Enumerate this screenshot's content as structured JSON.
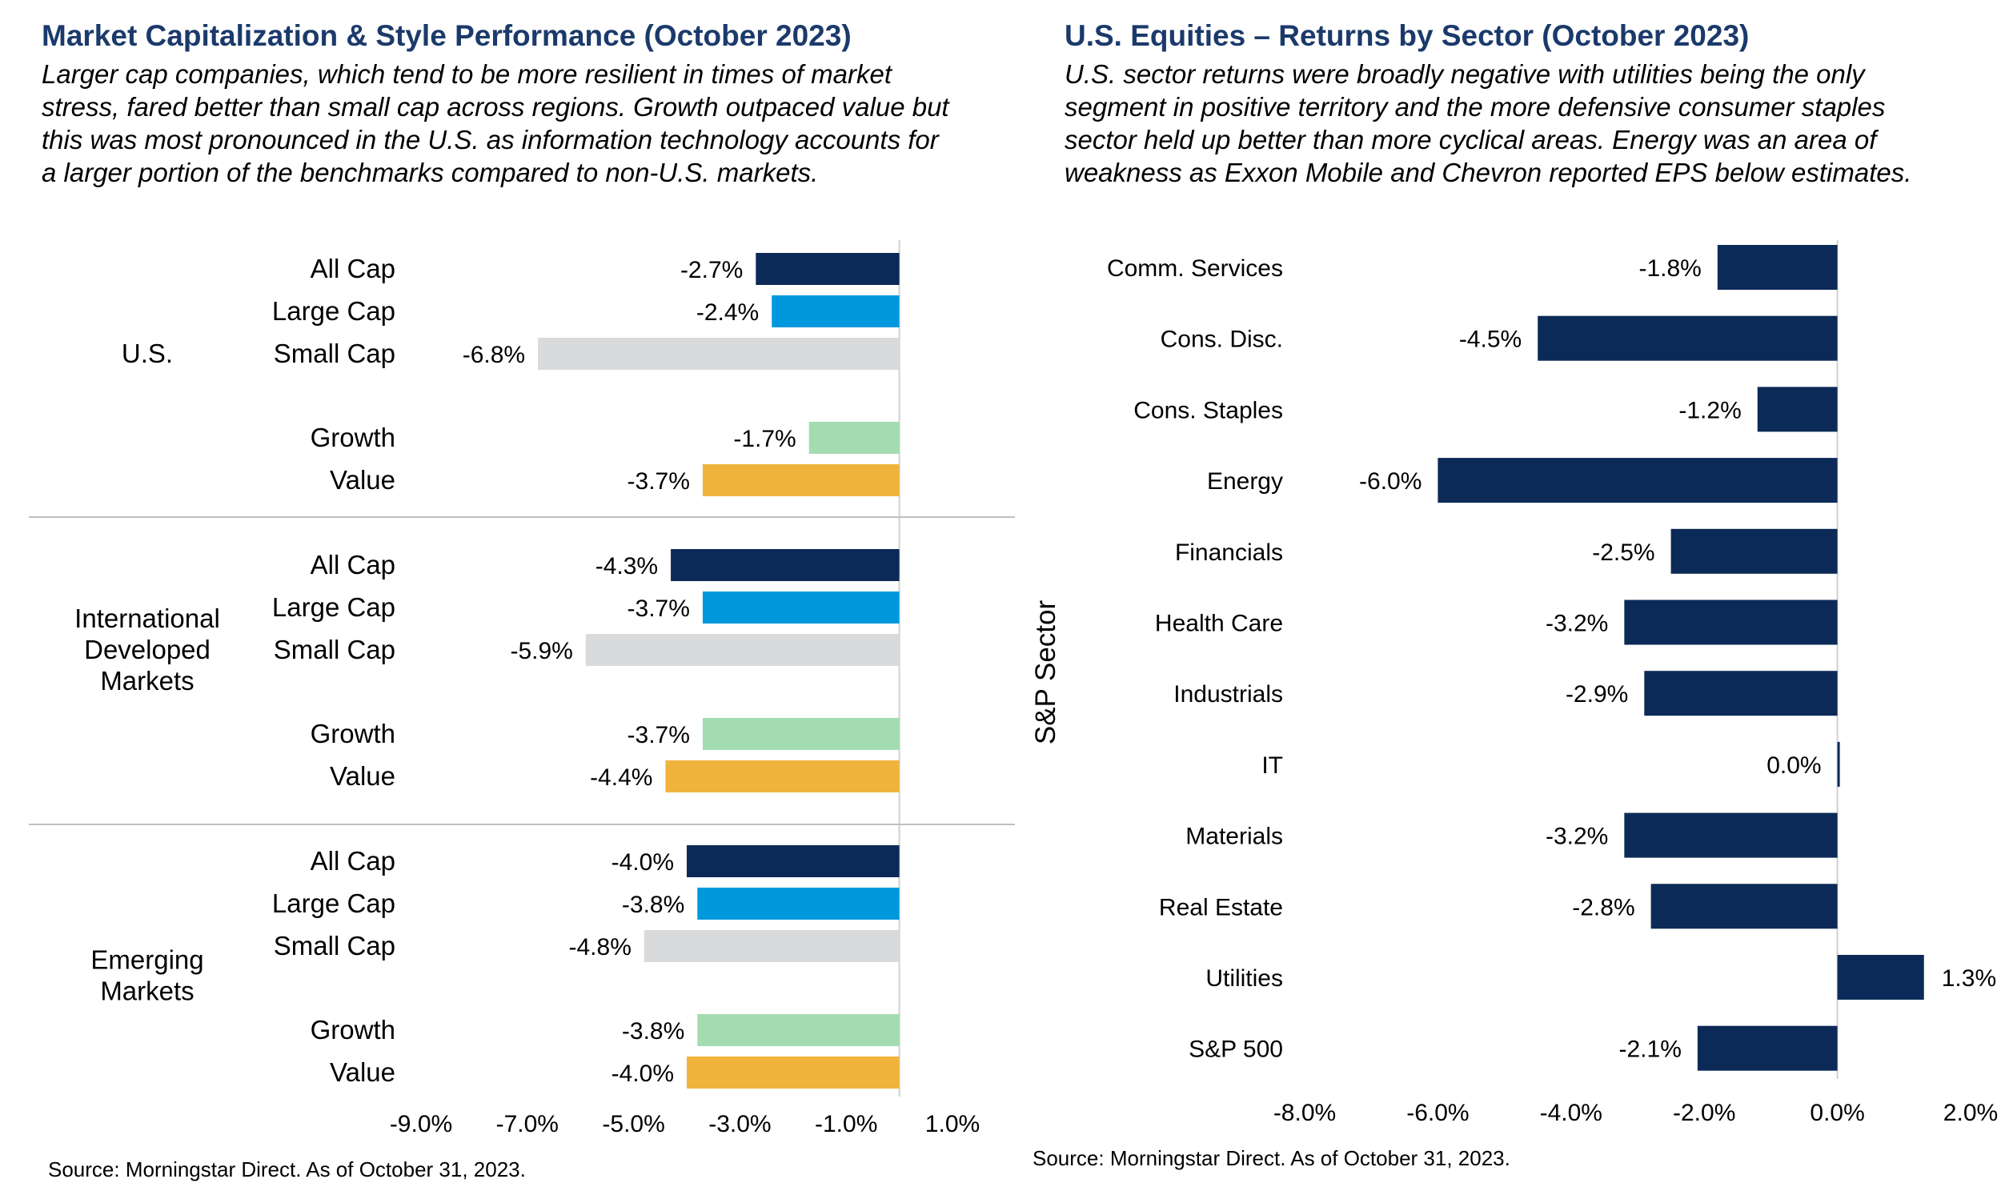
{
  "left": {
    "title": "Market Capitalization & Style Performance (October 2023)",
    "subtitle_lines": [
      "Larger cap companies, which tend to be more resilient in times of market",
      "stress, fared better than small cap across regions. Growth outpaced value but",
      "this was most pronounced in the U.S. as information technology accounts for",
      "a larger portion of the benchmarks compared to non-U.S. markets."
    ],
    "source": "Source: Morningstar Direct. As of October 31, 2023."
  },
  "right": {
    "title": "U.S. Equities – Returns by Sector (October 2023)",
    "subtitle_lines": [
      "U.S. sector returns were broadly negative with utilities being the only",
      "segment in positive territory and the more defensive consumer staples",
      "sector held up better than more cyclical areas. Energy was an area of",
      "weakness as Exxon Mobile and Chevron reported EPS below estimates."
    ],
    "source": "Source: Morningstar Direct. As of October 31, 2023."
  },
  "colors": {
    "All Cap": "#0b2a57",
    "Large Cap": "#0098dd",
    "Small Cap": "#d9dadb",
    "Growth": "#a3dcb0",
    "Value": "#f0b43c",
    "sector_bar": "#0b2a57",
    "title": "#1b3a6b",
    "divider": "#bfbfbf",
    "axis": "#d0d0d0"
  },
  "chart_data": [
    {
      "type": "bar",
      "orientation": "horizontal",
      "title": "Market Capitalization & Style Performance (October 2023)",
      "xlim": [
        -9.0,
        1.0
      ],
      "xticks": [
        "-9.0%",
        "-7.0%",
        "-5.0%",
        "-3.0%",
        "-1.0%",
        "1.0%"
      ],
      "tick_values": [
        -9,
        -7,
        -5,
        -3,
        -1,
        1
      ],
      "groups": [
        {
          "name": "U.S.",
          "bars": [
            {
              "category": "All Cap",
              "value": -2.7,
              "label": "-2.7%"
            },
            {
              "category": "Large Cap",
              "value": -2.4,
              "label": "-2.4%"
            },
            {
              "category": "Small Cap",
              "value": -6.8,
              "label": "-6.8%"
            },
            {
              "category": "Growth",
              "value": -1.7,
              "label": "-1.7%"
            },
            {
              "category": "Value",
              "value": -3.7,
              "label": "-3.7%"
            }
          ]
        },
        {
          "name": "International Developed Markets",
          "name_lines": [
            "International",
            "Developed",
            "Markets"
          ],
          "bars": [
            {
              "category": "All Cap",
              "value": -4.3,
              "label": "-4.3%"
            },
            {
              "category": "Large Cap",
              "value": -3.7,
              "label": "-3.7%"
            },
            {
              "category": "Small Cap",
              "value": -5.9,
              "label": "-5.9%"
            },
            {
              "category": "Growth",
              "value": -3.7,
              "label": "-3.7%"
            },
            {
              "category": "Value",
              "value": -4.4,
              "label": "-4.4%"
            }
          ]
        },
        {
          "name": "Emerging Markets",
          "name_lines": [
            "Emerging",
            "Markets"
          ],
          "bars": [
            {
              "category": "All Cap",
              "value": -4.0,
              "label": "-4.0%"
            },
            {
              "category": "Large Cap",
              "value": -3.8,
              "label": "-3.8%"
            },
            {
              "category": "Small Cap",
              "value": -4.8,
              "label": "-4.8%"
            },
            {
              "category": "Growth",
              "value": -3.8,
              "label": "-3.8%"
            },
            {
              "category": "Value",
              "value": -4.0,
              "label": "-4.0%"
            }
          ]
        }
      ]
    },
    {
      "type": "bar",
      "orientation": "horizontal",
      "title": "U.S. Equities – Returns by Sector (October 2023)",
      "ylabel": "S&P Sector",
      "xlim": [
        -8.0,
        2.0
      ],
      "xticks": [
        "-8.0%",
        "-6.0%",
        "-4.0%",
        "-2.0%",
        "0.0%",
        "2.0%"
      ],
      "tick_values": [
        -8,
        -6,
        -4,
        -2,
        0,
        2
      ],
      "categories": [
        "Comm. Services",
        "Cons. Disc.",
        "Cons. Staples",
        "Energy",
        "Financials",
        "Health Care",
        "Industrials",
        "IT",
        "Materials",
        "Real Estate",
        "Utilities",
        "S&P 500"
      ],
      "values": [
        -1.8,
        -4.5,
        -1.2,
        -6.0,
        -2.5,
        -3.2,
        -2.9,
        0.0,
        -3.2,
        -2.8,
        1.3,
        -2.1
      ],
      "labels": [
        "-1.8%",
        "-4.5%",
        "-1.2%",
        "-6.0%",
        "-2.5%",
        "-3.2%",
        "-2.9%",
        "0.0%",
        "-3.2%",
        "-2.8%",
        "1.3%",
        "-2.1%"
      ]
    }
  ]
}
